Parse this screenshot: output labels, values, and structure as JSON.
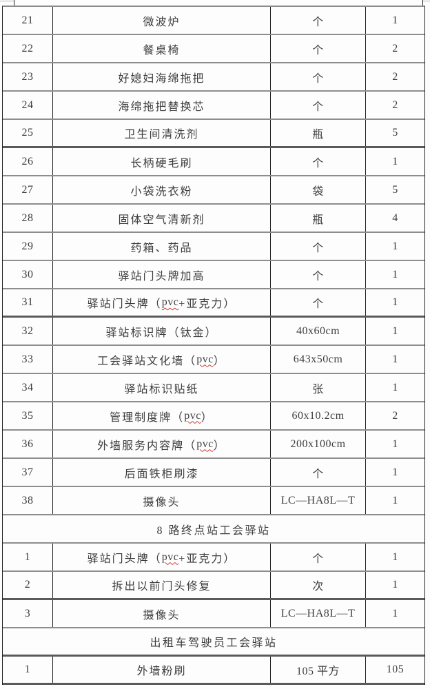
{
  "colors": {
    "page_bg": "#fdfdfd",
    "grid_horizontal": "#8d8d8d",
    "grid_horizontal_thick": "#5a5a5a",
    "grid_vertical": "#1f1f1f",
    "text": "#3d3d3d",
    "spellcheck_underline": "#cc3b30"
  },
  "table": {
    "column_semantics": [
      "序号",
      "名称",
      "规格/单位",
      "数量"
    ],
    "rows": [
      {
        "kind": "item",
        "no": "21",
        "name": [
          {
            "t": "微波炉"
          }
        ],
        "spec": "个",
        "qty": "1"
      },
      {
        "kind": "item",
        "no": "22",
        "name": [
          {
            "t": "餐桌椅"
          }
        ],
        "spec": "个",
        "qty": "2"
      },
      {
        "kind": "item",
        "no": "23",
        "name": [
          {
            "t": "好媳妇海绵拖把"
          }
        ],
        "spec": "个",
        "qty": "2"
      },
      {
        "kind": "item",
        "no": "24",
        "name": [
          {
            "t": "海绵拖把替换芯"
          }
        ],
        "spec": "个",
        "qty": "2"
      },
      {
        "kind": "item",
        "no": "25",
        "name": [
          {
            "t": "卫生间清洗剂"
          }
        ],
        "spec": "瓶",
        "qty": "5",
        "thick_bottom": true
      },
      {
        "kind": "item",
        "no": "26",
        "name": [
          {
            "t": "长柄硬毛刷"
          }
        ],
        "spec": "个",
        "qty": "1"
      },
      {
        "kind": "item",
        "no": "27",
        "name": [
          {
            "t": "小袋洗衣粉"
          }
        ],
        "spec": "袋",
        "qty": "5"
      },
      {
        "kind": "item",
        "no": "28",
        "name": [
          {
            "t": "固体空气清新剂"
          }
        ],
        "spec": "瓶",
        "qty": "4"
      },
      {
        "kind": "item",
        "no": "29",
        "name": [
          {
            "t": "药箱、药品"
          }
        ],
        "spec": "个",
        "qty": "1"
      },
      {
        "kind": "item",
        "no": "30",
        "name": [
          {
            "t": "驿站门头牌加高"
          }
        ],
        "spec": "个",
        "qty": "1"
      },
      {
        "kind": "item",
        "no": "31",
        "name": [
          {
            "t": "驿站门头牌（"
          },
          {
            "t": "pvc",
            "misspelled": true
          },
          {
            "t": "+亚克力）"
          }
        ],
        "spec": "个",
        "qty": "1",
        "thick_bottom": true
      },
      {
        "kind": "item",
        "no": "32",
        "name": [
          {
            "t": "驿站标识牌（钛金）"
          }
        ],
        "spec": "40x60cm",
        "qty": "1"
      },
      {
        "kind": "item",
        "no": "33",
        "name": [
          {
            "t": "工会驿站文化墙（"
          },
          {
            "t": "pvc",
            "misspelled": true
          },
          {
            "t": "）"
          }
        ],
        "spec": "643x50cm",
        "qty": "1"
      },
      {
        "kind": "item",
        "no": "34",
        "name": [
          {
            "t": "驿站标识贴纸"
          }
        ],
        "spec": "张",
        "qty": "1"
      },
      {
        "kind": "item",
        "no": "35",
        "name": [
          {
            "t": "管理制度牌（"
          },
          {
            "t": "pvc",
            "misspelled": true
          },
          {
            "t": "）"
          }
        ],
        "spec": "60x10.2cm",
        "qty": "2"
      },
      {
        "kind": "item",
        "no": "36",
        "name": [
          {
            "t": "外墙服务内容牌（"
          },
          {
            "t": "pvc",
            "misspelled": true
          },
          {
            "t": "）"
          }
        ],
        "spec": "200x100cm",
        "qty": "1"
      },
      {
        "kind": "item",
        "no": "37",
        "name": [
          {
            "t": "后面铁柜刷漆"
          }
        ],
        "spec": "个",
        "qty": "1"
      },
      {
        "kind": "item",
        "no": "38",
        "name": [
          {
            "t": "摄像头"
          }
        ],
        "spec": "LC—HA8L—T",
        "qty": "1"
      },
      {
        "kind": "section",
        "title": "8 路终点站工会驿站"
      },
      {
        "kind": "item",
        "no": "1",
        "name": [
          {
            "t": "驿站门头牌（"
          },
          {
            "t": "pvc",
            "misspelled": true
          },
          {
            "t": "+亚克力）"
          }
        ],
        "spec": "个",
        "qty": "1"
      },
      {
        "kind": "item",
        "no": "2",
        "name": [
          {
            "t": "拆出以前门头修复"
          }
        ],
        "spec": "次",
        "qty": "1",
        "thick_bottom": true
      },
      {
        "kind": "item",
        "no": "3",
        "name": [
          {
            "t": "摄像头"
          }
        ],
        "spec": "LC—HA8L—T",
        "qty": "1"
      },
      {
        "kind": "section",
        "title": "出租车驾驶员工会驿站",
        "thick_bottom": true
      },
      {
        "kind": "item",
        "no": "1",
        "name": [
          {
            "t": "外墙粉刷"
          }
        ],
        "spec": "105 平方",
        "qty": "105"
      }
    ]
  }
}
